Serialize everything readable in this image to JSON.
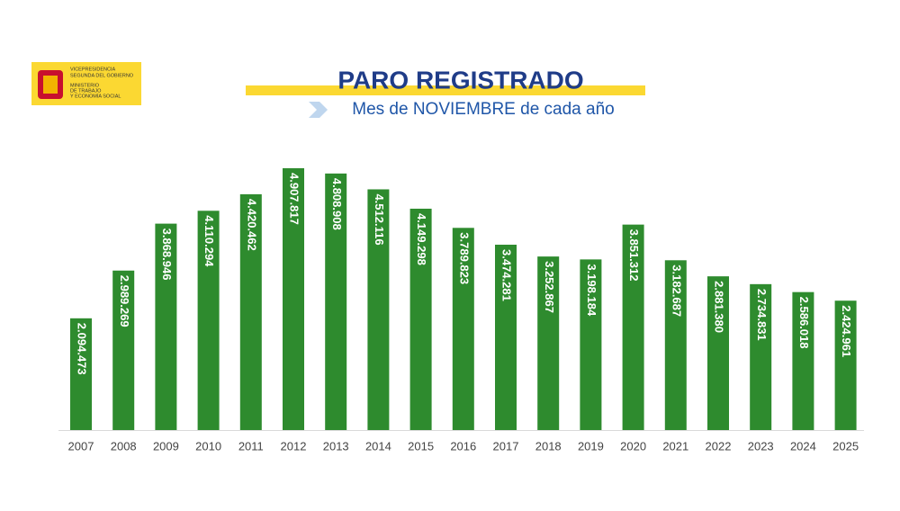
{
  "logo": {
    "lines": [
      "VICEPRESIDENCIA",
      "SEGUNDA DEL GOBIERNO",
      "MINISTERIO",
      "DE TRABAJO",
      "Y ECONOMÍA SOCIAL"
    ]
  },
  "chart_data": {
    "type": "bar",
    "title": "PARO REGISTRADO",
    "subtitle": "Mes de NOVIEMBRE de cada año",
    "categories": [
      "2007",
      "2008",
      "2009",
      "2010",
      "2011",
      "2012",
      "2013",
      "2014",
      "2015",
      "2016",
      "2017",
      "2018",
      "2019",
      "2020",
      "2021",
      "2022",
      "2023",
      "2024",
      "2025"
    ],
    "values": [
      2094473,
      2989269,
      3868946,
      4110294,
      4420462,
      4907817,
      4808908,
      4512116,
      4149298,
      3789823,
      3474281,
      3252867,
      3198184,
      3851312,
      3182687,
      2881380,
      2734831,
      2586018,
      2424961
    ],
    "value_labels": [
      "2.094.473",
      "2.989.269",
      "3.868.946",
      "4.110.294",
      "4.420.462",
      "4.907.817",
      "4.808.908",
      "4.512.116",
      "4.149.298",
      "3.789.823",
      "3.474.281",
      "3.252.867",
      "3.198.184",
      "3.851.312",
      "3.182.687",
      "2.881.380",
      "2.734.831",
      "2.586.018",
      "2.424.961"
    ],
    "color": "#2e8b2e"
  }
}
